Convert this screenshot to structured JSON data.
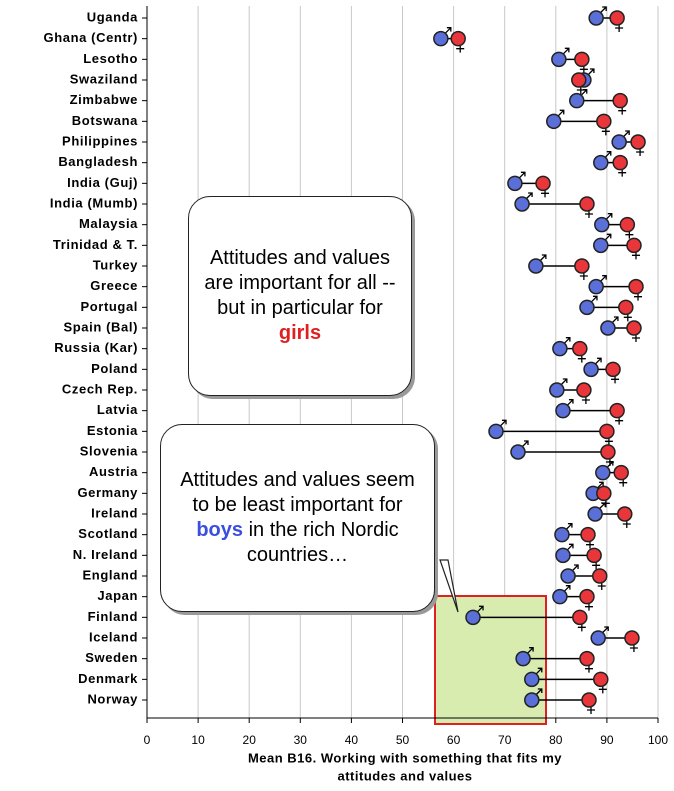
{
  "chart_data": {
    "type": "dumbbell",
    "categories": [
      "Uganda",
      "Ghana (Centr)",
      "Lesotho",
      "Swaziland",
      "Zimbabwe",
      "Botswana",
      "Philippines",
      "Bangladesh",
      "India (Guj)",
      "India (Mumb)",
      "Malaysia",
      "Trinidad & T.",
      "Turkey",
      "Greece",
      "Portugal",
      "Spain (Bal)",
      "Russia (Kar)",
      "Poland",
      "Czech Rep.",
      "Latvia",
      "Estonia",
      "Slovenia",
      "Austria",
      "Germany",
      "Ireland",
      "Scotland",
      "N. Ireland",
      "England",
      "Japan",
      "Finland",
      "Iceland",
      "Sweden",
      "Denmark",
      "Norway"
    ],
    "series": [
      {
        "name": "Boys",
        "color": "#5a6fd8",
        "values": [
          87.9,
          57.5,
          80.6,
          85.5,
          84.1,
          79.6,
          92.4,
          88.8,
          72.0,
          73.4,
          89.0,
          88.8,
          76.1,
          87.9,
          86.1,
          90.2,
          80.8,
          86.9,
          80.2,
          81.4,
          68.3,
          72.6,
          89.2,
          87.3,
          87.7,
          81.2,
          81.4,
          82.4,
          80.8,
          63.8,
          88.3,
          73.6,
          75.3,
          75.3
        ]
      },
      {
        "name": "Girls",
        "color": "#e8363a",
        "values": [
          92.0,
          60.9,
          85.1,
          84.5,
          92.6,
          89.4,
          96.1,
          92.6,
          77.5,
          86.1,
          94.0,
          95.3,
          85.1,
          95.7,
          93.7,
          95.3,
          84.7,
          91.2,
          85.5,
          92.0,
          90.0,
          90.2,
          92.8,
          89.4,
          93.5,
          86.3,
          87.5,
          88.6,
          86.1,
          84.7,
          94.9,
          86.1,
          88.8,
          86.5
        ]
      }
    ],
    "xlim": [
      0,
      100
    ],
    "xticks": [
      0,
      10,
      20,
      30,
      40,
      50,
      60,
      70,
      80,
      90,
      100
    ],
    "grid": true,
    "xlabel": [
      "Mean B16. Working with something that fits my",
      "attitudes and values"
    ]
  },
  "callouts": [
    {
      "text": "Attitudes and values are important for all  -- but in particular for ",
      "highlight": "girls"
    },
    {
      "text": "Attitudes and values seem to be least important for ",
      "highlight": "boys",
      "after": " in the rich Nordic countries…"
    }
  ]
}
